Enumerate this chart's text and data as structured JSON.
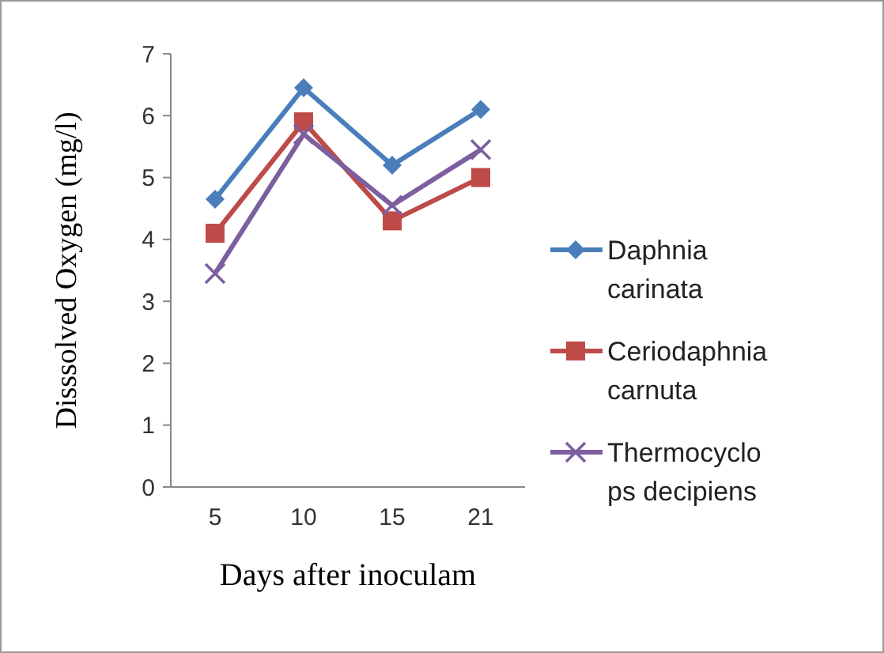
{
  "chart_data": {
    "type": "line",
    "xlabel": "Days after inoculam",
    "ylabel": "Disssolved Oxygen (mg/l)",
    "categories": [
      "5",
      "10",
      "15",
      "21"
    ],
    "ylim": [
      0,
      7
    ],
    "yticks": [
      0,
      1,
      2,
      3,
      4,
      5,
      6,
      7
    ],
    "grid": false,
    "legend": "right",
    "series": [
      {
        "name": "Daphnia carinata",
        "color": "#4a7ebb",
        "marker": "diamond",
        "values": [
          4.65,
          6.45,
          5.2,
          6.1
        ]
      },
      {
        "name": "Ceriodaphnia carnuta",
        "color": "#be4b48",
        "marker": "square",
        "values": [
          4.1,
          5.9,
          4.3,
          5.0
        ]
      },
      {
        "name": "Thermocyclops decipiens",
        "color": "#7d5fa0",
        "marker": "cross",
        "values": [
          3.45,
          5.7,
          4.55,
          5.45
        ]
      }
    ]
  }
}
